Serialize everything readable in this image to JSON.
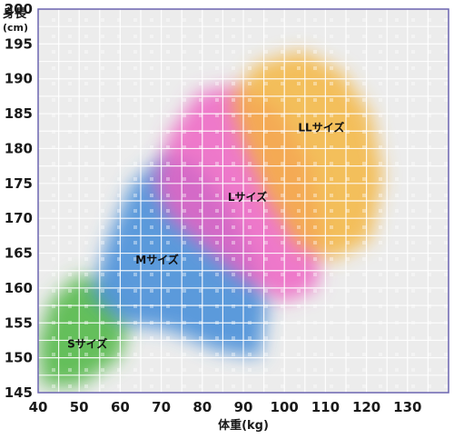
{
  "chart_data": {
    "type": "area",
    "title": "",
    "xlabel": "体重(kg)",
    "ylabel": "身長",
    "ylabel_unit": "(cm)",
    "xlim": [
      40,
      140
    ],
    "ylim": [
      145,
      200
    ],
    "x_ticks": [
      40,
      50,
      60,
      70,
      80,
      90,
      100,
      110,
      120,
      130
    ],
    "y_ticks": [
      145,
      150,
      155,
      160,
      165,
      170,
      175,
      180,
      185,
      190,
      195,
      200
    ],
    "grid": true,
    "regions": [
      {
        "name": "Sサイズ",
        "color": "#46b43c",
        "label_at": [
          52,
          152
        ],
        "polygon": [
          [
            40,
            152
          ],
          [
            43,
            158
          ],
          [
            50,
            162
          ],
          [
            57,
            160
          ],
          [
            62,
            155
          ],
          [
            60,
            150
          ],
          [
            50,
            146
          ],
          [
            41,
            146
          ]
        ]
      },
      {
        "name": "Mサイズ",
        "color": "#3a88d8",
        "label_at": [
          69,
          164
        ],
        "polygon": [
          [
            53,
            159
          ],
          [
            57,
            167
          ],
          [
            63,
            175
          ],
          [
            71,
            179
          ],
          [
            78,
            178
          ],
          [
            86,
            172
          ],
          [
            92,
            165
          ],
          [
            96,
            158
          ],
          [
            94,
            150
          ],
          [
            84,
            151
          ],
          [
            72,
            154
          ],
          [
            60,
            155
          ]
        ]
      },
      {
        "name": "Lサイズ",
        "color": "#ee5fc2",
        "label_at": [
          91,
          173
        ],
        "polygon": [
          [
            68,
            175
          ],
          [
            72,
            182
          ],
          [
            79,
            188
          ],
          [
            88,
            189
          ],
          [
            98,
            186
          ],
          [
            106,
            178
          ],
          [
            109,
            168
          ],
          [
            108,
            160
          ],
          [
            100,
            158
          ],
          [
            90,
            161
          ],
          [
            80,
            166
          ],
          [
            72,
            170
          ]
        ]
      },
      {
        "name": "LLサイズ",
        "color": "#f5b53a",
        "label_at": [
          109,
          183
        ],
        "polygon": [
          [
            87,
            187
          ],
          [
            93,
            192
          ],
          [
            104,
            194
          ],
          [
            114,
            191
          ],
          [
            121,
            185
          ],
          [
            124,
            176
          ],
          [
            121,
            167
          ],
          [
            112,
            164
          ],
          [
            103,
            166
          ],
          [
            95,
            174
          ],
          [
            90,
            181
          ]
        ]
      }
    ]
  }
}
